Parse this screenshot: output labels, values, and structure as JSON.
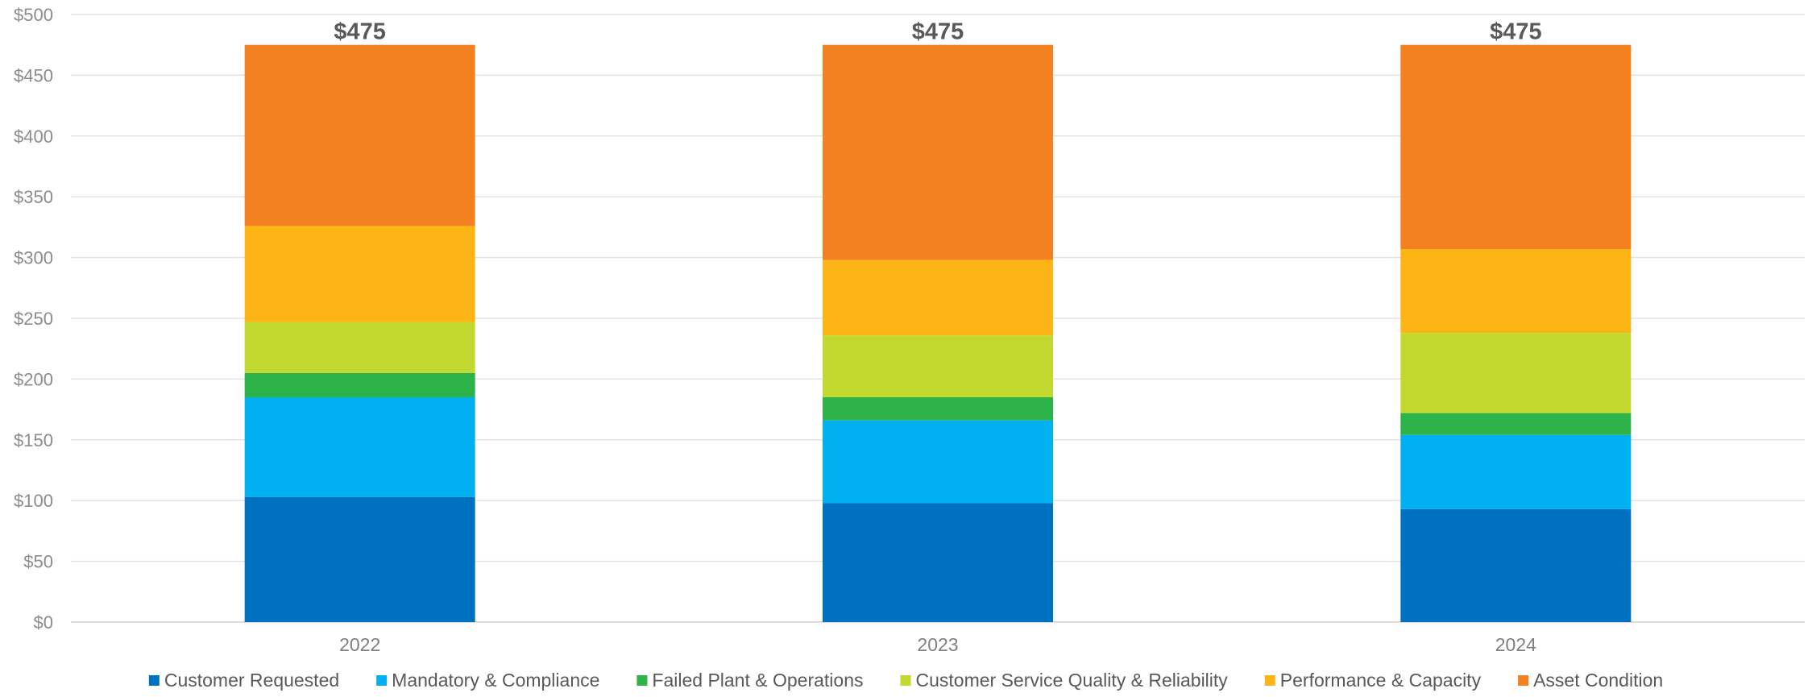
{
  "chart_data": {
    "type": "bar",
    "stacked": true,
    "categories": [
      "2022",
      "2023",
      "2024"
    ],
    "series": [
      {
        "name": "Customer Requested",
        "color": "#0070c0",
        "values": [
          103,
          98,
          93
        ]
      },
      {
        "name": "Mandatory & Compliance",
        "color": "#00b0f0",
        "values": [
          82,
          68,
          61
        ]
      },
      {
        "name": "Failed Plant & Operations",
        "color": "#2db34a",
        "values": [
          20,
          19,
          18
        ]
      },
      {
        "name": "Customer Service Quality & Reliability",
        "color": "#c2d92f",
        "values": [
          42,
          51,
          66
        ]
      },
      {
        "name": "Performance & Capacity",
        "color": "#fdb515",
        "values": [
          79,
          62,
          69
        ]
      },
      {
        "name": "Asset Condition",
        "color": "#f48120",
        "values": [
          149,
          177,
          168
        ]
      }
    ],
    "totals": [
      "$475",
      "$475",
      "$475"
    ],
    "ylim": [
      0,
      500
    ],
    "yticks": [
      "$0",
      "$50",
      "$100",
      "$150",
      "$200",
      "$250",
      "$300",
      "$350",
      "$400",
      "$450",
      "$500"
    ],
    "ytick_values": [
      0,
      50,
      100,
      150,
      200,
      250,
      300,
      350,
      400,
      450,
      500
    ],
    "grid": true,
    "legend_position": "bottom",
    "title": "",
    "xlabel": "",
    "ylabel": ""
  }
}
